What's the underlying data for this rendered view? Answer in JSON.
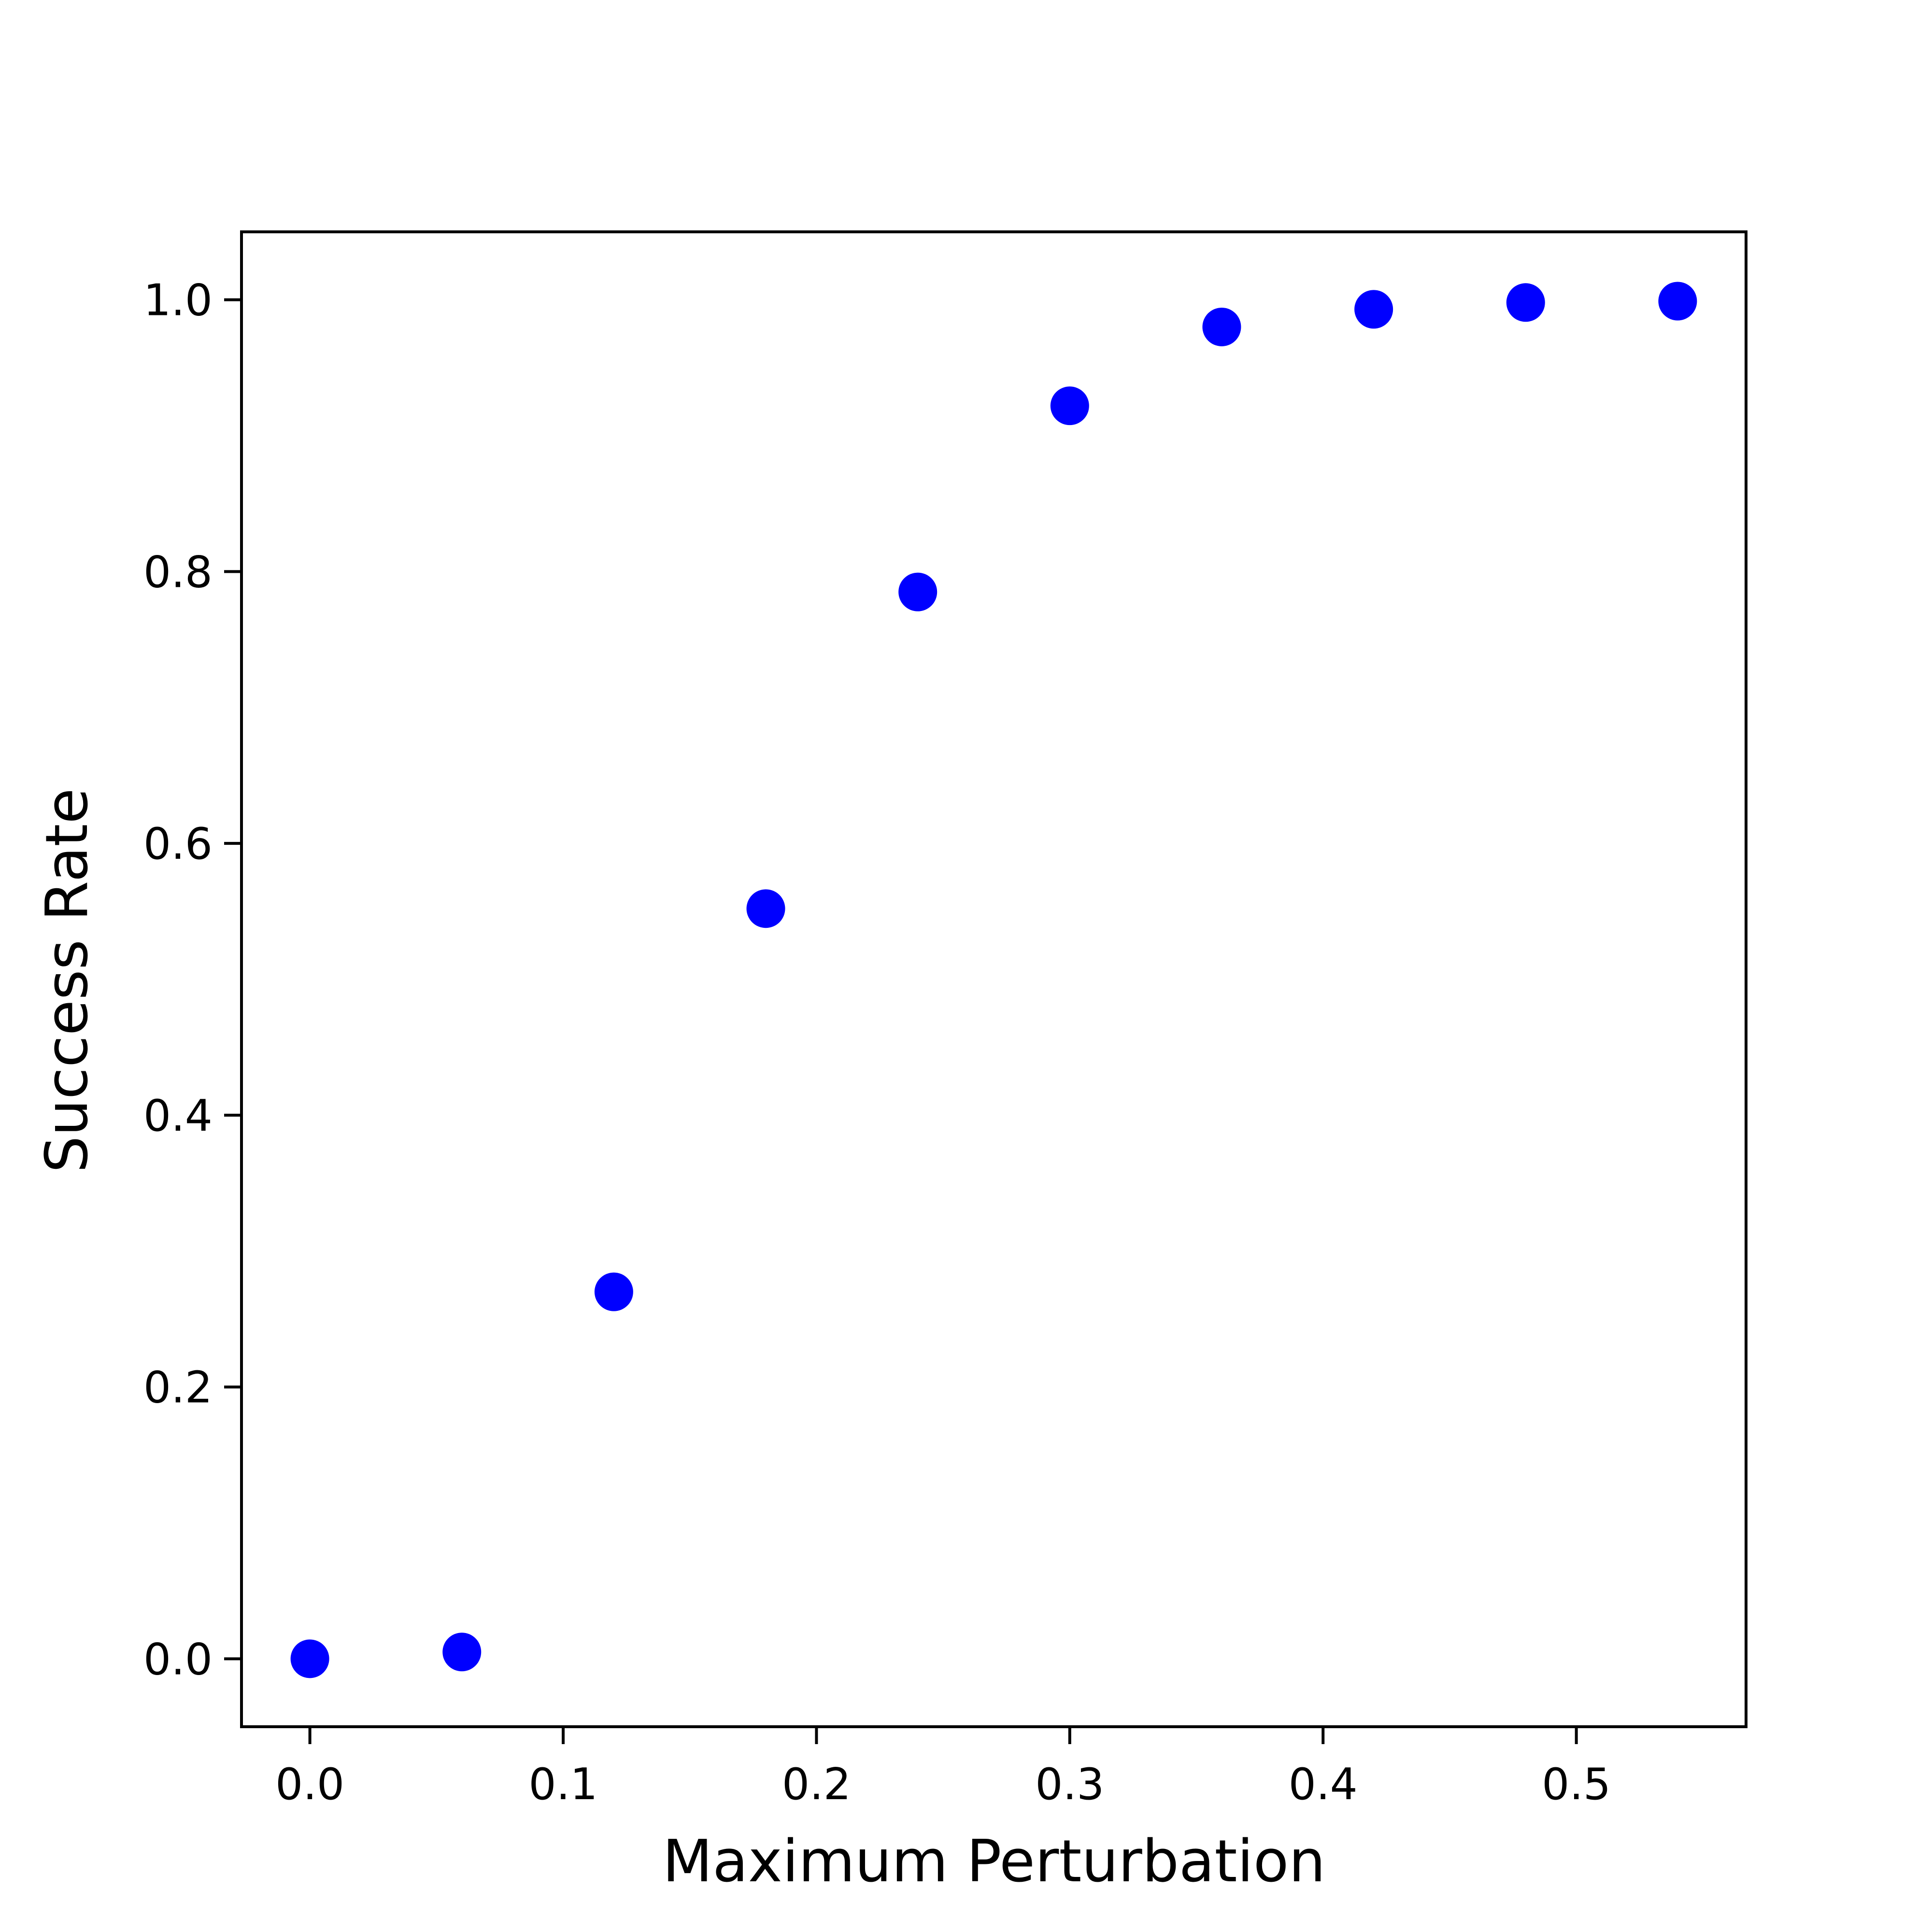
{
  "chart_data": {
    "type": "scatter",
    "title": "",
    "xlabel": "Maximum Perturbation",
    "ylabel": "Success Rate",
    "x": [
      0.0,
      0.06,
      0.12,
      0.18,
      0.24,
      0.3,
      0.36,
      0.42,
      0.48,
      0.54
    ],
    "y": [
      0.0,
      0.005,
      0.27,
      0.552,
      0.785,
      0.922,
      0.98,
      0.993,
      0.998,
      0.999
    ],
    "series": [
      {
        "name": "success_rate",
        "color": "#0000ff",
        "x": [
          0.0,
          0.06,
          0.12,
          0.18,
          0.24,
          0.3,
          0.36,
          0.42,
          0.48,
          0.54
        ],
        "y": [
          0.0,
          0.005,
          0.27,
          0.552,
          0.785,
          0.922,
          0.98,
          0.993,
          0.998,
          0.999
        ]
      }
    ],
    "xlim": [
      -0.027,
      0.567
    ],
    "ylim": [
      -0.05,
      1.05
    ],
    "xticks": [
      {
        "value": 0.0,
        "label": "0.0"
      },
      {
        "value": 0.1,
        "label": "0.1"
      },
      {
        "value": 0.2,
        "label": "0.2"
      },
      {
        "value": 0.3,
        "label": "0.3"
      },
      {
        "value": 0.4,
        "label": "0.4"
      },
      {
        "value": 0.5,
        "label": "0.5"
      }
    ],
    "yticks": [
      {
        "value": 0.0,
        "label": "0.0"
      },
      {
        "value": 0.2,
        "label": "0.2"
      },
      {
        "value": 0.4,
        "label": "0.4"
      },
      {
        "value": 0.6,
        "label": "0.6"
      },
      {
        "value": 0.8,
        "label": "0.8"
      },
      {
        "value": 1.0,
        "label": "1.0"
      }
    ],
    "grid": false,
    "legend": "none"
  }
}
